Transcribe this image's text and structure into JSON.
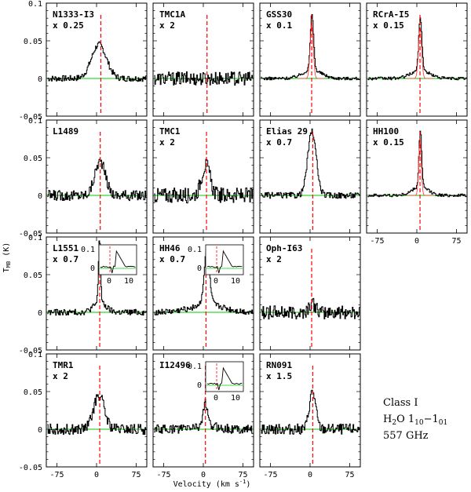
{
  "figure": {
    "xlabel": "Velocity (km s",
    "xlabel_sup": "-1",
    "xlabel_end": ")",
    "ylabel_main": "T",
    "ylabel_sub": "MB",
    "ylabel_unit": " (K)",
    "note": {
      "line1": "Class I",
      "line2_pre": "H",
      "line2_sub1": "2",
      "line2_mid": "O 1",
      "line2_sub2": "10",
      "line2_mid2": "−1",
      "line2_sub3": "01",
      "line3": "557 GHz"
    }
  },
  "chart_data": {
    "type": "line",
    "xlim": [
      -95,
      95
    ],
    "ylim": [
      -0.05,
      0.1
    ],
    "xticks": [
      -75,
      0,
      75
    ],
    "yticks": [
      -0.05,
      0,
      0.05,
      0.1
    ],
    "ytick_labels": [
      "-0.05",
      "0",
      "0.05",
      "0.1"
    ],
    "xtick_labels": [
      "-75",
      "0",
      "75"
    ],
    "colors": {
      "spectrum": "#000000",
      "baseline": "#00cc00",
      "vlsr": "#ff0000",
      "fit": "#ff3333"
    },
    "panels": [
      {
        "row": 0,
        "col": 0,
        "name": "N1333-I3",
        "scale": "x 0.25",
        "vlsr": 8,
        "peak": 0.045,
        "center": 4,
        "width": 14,
        "noise": 0.004,
        "narrow": 0
      },
      {
        "row": 0,
        "col": 1,
        "name": "TMC1A",
        "scale": "x 2",
        "vlsr": 7,
        "peak": 0.0,
        "center": 0,
        "width": 10,
        "noise": 0.009,
        "narrow": 0
      },
      {
        "row": 0,
        "col": 2,
        "name": "GSS30",
        "scale": "x 0.1",
        "vlsr": 3,
        "peak": 0.075,
        "center": 3,
        "width": 3,
        "noise": 0.002,
        "narrow": 1
      },
      {
        "row": 0,
        "col": 3,
        "name": "RCrA-I5",
        "scale": "x 0.15",
        "vlsr": 6,
        "peak": 0.07,
        "center": 6,
        "width": 3,
        "noise": 0.002,
        "narrow": 1
      },
      {
        "row": 1,
        "col": 0,
        "name": "L1489",
        "scale": "",
        "vlsr": 7,
        "peak": 0.045,
        "center": 6,
        "width": 10,
        "noise": 0.007,
        "narrow": 0
      },
      {
        "row": 1,
        "col": 1,
        "name": "TMC1",
        "scale": "x 2",
        "vlsr": 6,
        "peak": 0.04,
        "center": 4,
        "width": 8,
        "noise": 0.01,
        "narrow": 0
      },
      {
        "row": 1,
        "col": 2,
        "name": "Elias 29",
        "scale": "x 0.7",
        "vlsr": 5,
        "peak": 0.085,
        "center": 3,
        "width": 8,
        "noise": 0.004,
        "narrow": 0
      },
      {
        "row": 1,
        "col": 3,
        "name": "HH100",
        "scale": "x 0.15",
        "vlsr": 6,
        "peak": 0.075,
        "center": 6,
        "width": 2.5,
        "noise": 0.002,
        "narrow": 1
      },
      {
        "row": 2,
        "col": 0,
        "name": "L1551",
        "scale": "x 0.7",
        "vlsr": 6,
        "peak": 0.085,
        "center": 5,
        "width": 2,
        "noise": 0.004,
        "narrow": 1,
        "inset": true
      },
      {
        "row": 2,
        "col": 1,
        "name": "HH46",
        "scale": "x 0.7",
        "vlsr": 5,
        "peak": 0.07,
        "center": 6,
        "width": 5,
        "noise": 0.004,
        "narrow": 1,
        "inset": true
      },
      {
        "row": 2,
        "col": 2,
        "name": "Oph-I63",
        "scale": "x 2",
        "vlsr": 3,
        "peak": 0.012,
        "center": 3,
        "width": 6,
        "noise": 0.009,
        "narrow": 0
      },
      {
        "row": 3,
        "col": 0,
        "name": "TMR1",
        "scale": "x 2",
        "vlsr": 6,
        "peak": 0.045,
        "center": 4,
        "width": 10,
        "noise": 0.007,
        "narrow": 0
      },
      {
        "row": 3,
        "col": 1,
        "name": "I12496",
        "scale": "",
        "vlsr": 4,
        "peak": 0.03,
        "center": 3,
        "width": 4,
        "noise": 0.006,
        "narrow": 1,
        "inset": true
      },
      {
        "row": 3,
        "col": 2,
        "name": "RN091",
        "scale": "x 1.5",
        "vlsr": 5,
        "peak": 0.05,
        "center": 4,
        "width": 6,
        "noise": 0.007,
        "narrow": 0
      }
    ],
    "inset": {
      "xticks": [
        0,
        10
      ],
      "xtick_labels": [
        "0",
        "10"
      ],
      "ytick_labels": [
        "0.1",
        "0"
      ]
    }
  }
}
